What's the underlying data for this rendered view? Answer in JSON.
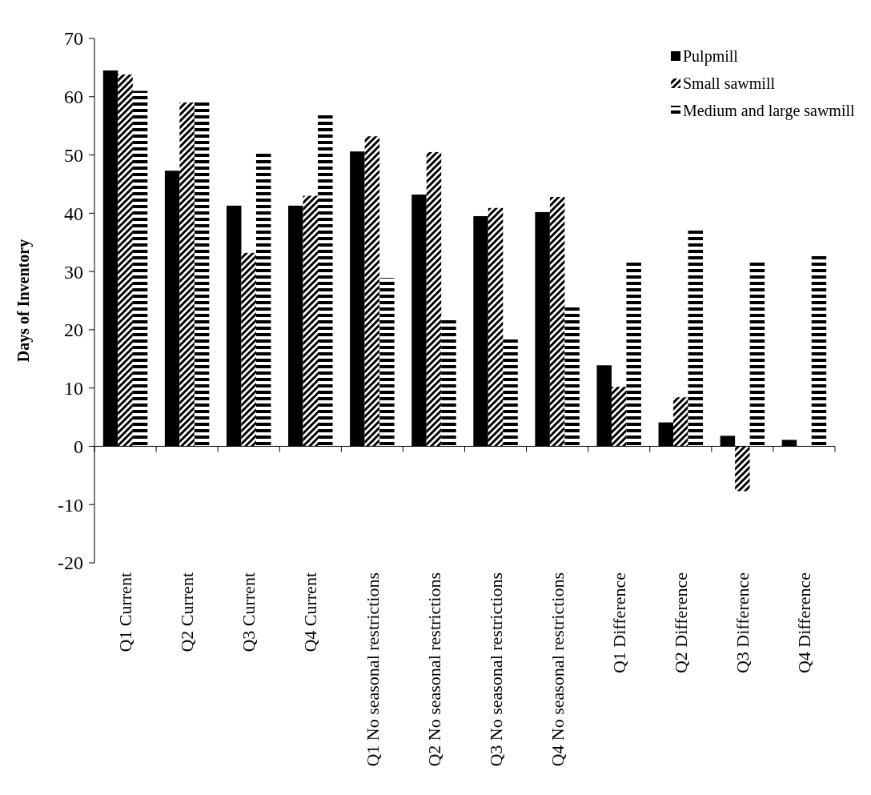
{
  "chart_data": {
    "type": "bar",
    "ylabel": "Days of Inventory",
    "categories": [
      "Q1 Current",
      "Q2 Current",
      "Q3 Current",
      "Q4 Current",
      "Q1 No seasonal restrictions",
      "Q2 No seasonal restrictions",
      "Q3 No seasonal restrictions",
      "Q4 No seasonal restrictions",
      "Q1 Difference",
      "Q2 Difference",
      "Q3 Difference",
      "Q4 Difference"
    ],
    "series": [
      {
        "name": "Pulpmill",
        "color": "#000000",
        "values": [
          64.5,
          47.3,
          41.3,
          41.3,
          50.6,
          43.2,
          39.5,
          40.2,
          13.9,
          4.1,
          1.8,
          1.1
        ]
      },
      {
        "name": "Small sawmill",
        "color": "#000000",
        "values": [
          63.8,
          59,
          33.2,
          43,
          53.2,
          50.5,
          40.9,
          42.8,
          10.2,
          8.4,
          -7.7,
          0
        ]
      },
      {
        "name": "Medium and large sawmill",
        "color": "#000000",
        "values": [
          61,
          59,
          50.5,
          56.8,
          28.9,
          21.8,
          18.4,
          24.1,
          31.7,
          37.2,
          31.7,
          33.1
        ]
      }
    ],
    "ylim": [
      -20,
      70
    ],
    "yticks": [
      -20,
      -10,
      0,
      10,
      20,
      30,
      40,
      50,
      60,
      70
    ],
    "legend": "top right"
  }
}
